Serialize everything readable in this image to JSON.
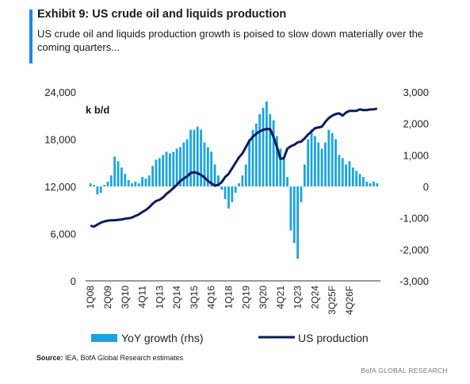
{
  "header": {
    "title": "Exhibit 9: US crude oil and liquids production",
    "subtitle": "US crude oil and liquids production growth is poised to slow down materially over the coming quarters..."
  },
  "footer": {
    "source_label": "Source:",
    "source_text": " IEA, BofA Global Research estimates",
    "brand": "BofA GLOBAL RESEARCH"
  },
  "colors": {
    "accent": "#1e88e5",
    "bars": "#1aa3e0",
    "line": "#0d1b5e"
  },
  "chart_data": {
    "type": "bar+line",
    "unit_label": "k b/d",
    "left_axis": {
      "ticks": [
        "24,000",
        "18,000",
        "12,000",
        "6,000",
        "0"
      ],
      "range": [
        0,
        24000
      ]
    },
    "right_axis": {
      "ticks": [
        "3,000",
        "2,000",
        "1,000",
        "0",
        "-1,000",
        "-2,000",
        "-3,000"
      ],
      "range": [
        -3000,
        3000
      ]
    },
    "x_tick_labels": [
      "1Q08",
      "2Q09",
      "3Q10",
      "4Q11",
      "1Q13",
      "2Q14",
      "3Q15",
      "4Q16",
      "1Q18",
      "2Q19",
      "3Q20",
      "4Q21",
      "1Q23",
      "2Q24",
      "3Q25F",
      "4Q26F"
    ],
    "quarters_start": "1Q08",
    "quarters_end": "4Q26F",
    "legend": {
      "bars": "YoY growth (rhs)",
      "line": "US production"
    },
    "series": [
      {
        "name": "YoY growth (rhs)",
        "type": "bar",
        "axis": "right",
        "values": [
          100,
          50,
          -250,
          -200,
          50,
          150,
          350,
          950,
          800,
          600,
          400,
          200,
          100,
          150,
          100,
          300,
          250,
          350,
          650,
          850,
          900,
          1000,
          1100,
          1050,
          1100,
          1200,
          1250,
          1400,
          1500,
          1800,
          1800,
          1900,
          1800,
          1400,
          1250,
          1100,
          700,
          350,
          -100,
          -400,
          -700,
          -500,
          -200,
          100,
          350,
          700,
          1500,
          1800,
          2000,
          2300,
          2500,
          2700,
          2300,
          2100,
          1600,
          1200,
          900,
          300,
          -1400,
          -1800,
          -2300,
          -500,
          700,
          1500,
          1800,
          1600,
          1400,
          1200,
          1400,
          1800,
          1700,
          1500,
          1000,
          900,
          700,
          800,
          600,
          500,
          400,
          300,
          150,
          100,
          150,
          100
        ]
      },
      {
        "name": "US production",
        "type": "line",
        "axis": "left",
        "values": [
          7000,
          6900,
          7150,
          7400,
          7550,
          7650,
          7700,
          7700,
          7750,
          7800,
          7900,
          7950,
          8050,
          8250,
          8450,
          8750,
          9000,
          9350,
          9800,
          10150,
          10300,
          10600,
          11050,
          11400,
          11800,
          12200,
          12700,
          13000,
          13300,
          13700,
          13800,
          13700,
          13450,
          13150,
          12700,
          12400,
          12100,
          12200,
          12550,
          13200,
          13600,
          14300,
          15000,
          15700,
          16200,
          17000,
          17800,
          18300,
          18700,
          19000,
          19200,
          19300,
          19300,
          18300,
          17000,
          15500,
          15600,
          16800,
          17100,
          17300,
          17600,
          17700,
          18100,
          18600,
          19000,
          19400,
          19500,
          19600,
          20200,
          20700,
          21000,
          21200,
          21300,
          21000,
          21400,
          21600,
          21600,
          21600,
          21800,
          21700,
          21700,
          21800,
          21800,
          21900
        ]
      }
    ]
  }
}
